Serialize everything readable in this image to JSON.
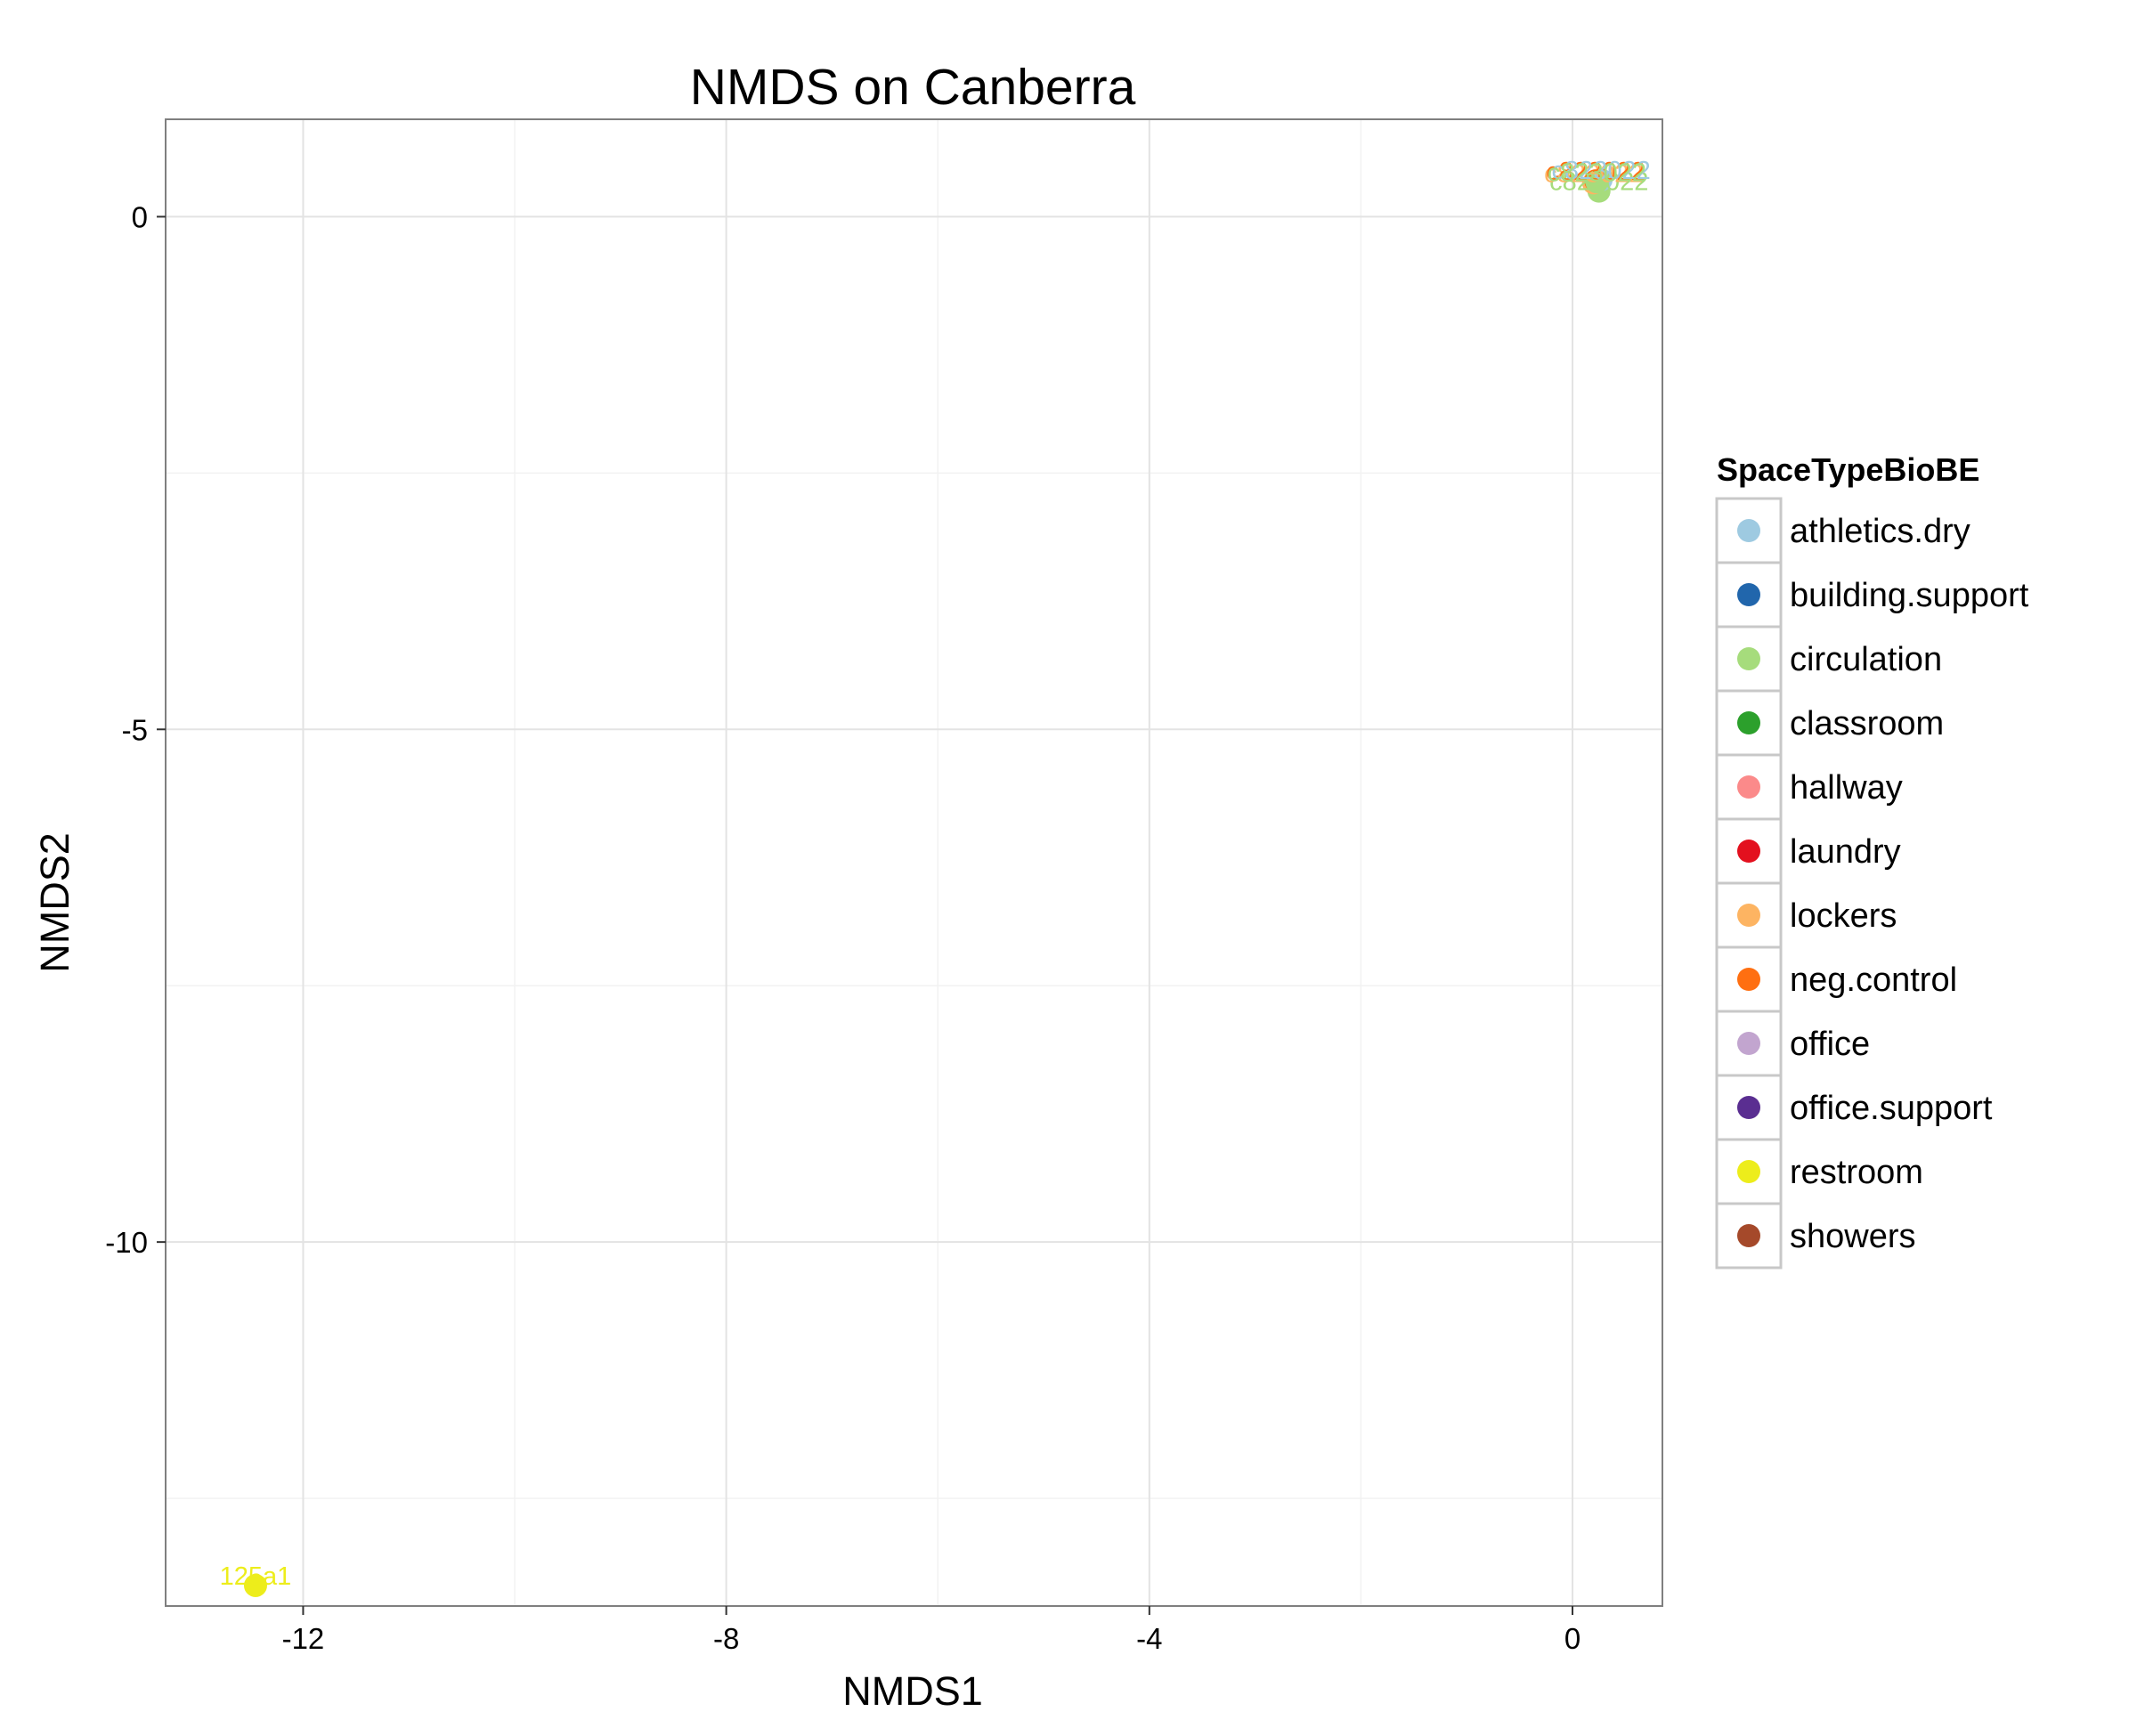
{
  "chart_data": {
    "type": "scatter",
    "title": "NMDS on Canberra",
    "xlabel": "NMDS1",
    "ylabel": "NMDS2",
    "xlim": [
      -13.3,
      0.85
    ],
    "ylim": [
      -13.55,
      0.95
    ],
    "xticks": [
      -12,
      -8,
      -4,
      0
    ],
    "yticks": [
      0,
      -5,
      -10
    ],
    "xtick_labels": [
      "-12",
      "-8",
      "-4",
      "0"
    ],
    "ytick_labels": [
      "0",
      "-5",
      "-10"
    ],
    "grid": true,
    "legend_position": "right",
    "legend_title": "SpaceTypeBioBE",
    "legend": [
      {
        "name": "athletics.dry",
        "color": "#9ecae1"
      },
      {
        "name": "building.support",
        "color": "#2166ac"
      },
      {
        "name": "circulation",
        "color": "#a6dc7c"
      },
      {
        "name": "classroom",
        "color": "#2ca02c"
      },
      {
        "name": "hallway",
        "color": "#fb8a8a"
      },
      {
        "name": "laundry",
        "color": "#e3101e"
      },
      {
        "name": "lockers",
        "color": "#fdb462"
      },
      {
        "name": "neg.control",
        "color": "#ff6f11"
      },
      {
        "name": "office",
        "color": "#c2a5cf"
      },
      {
        "name": "office.support",
        "color": "#5a2e91"
      },
      {
        "name": "restroom",
        "color": "#eded1b"
      },
      {
        "name": "showers",
        "color": "#a5492a"
      }
    ],
    "points": [
      {
        "x": -12.45,
        "y": -13.35,
        "group": "restroom",
        "label": "125a1"
      },
      {
        "x": 0.25,
        "y": 0.25,
        "group": "circulation",
        "label": "c823022"
      },
      {
        "x": 0.2,
        "y": 0.33,
        "group": "lockers",
        "label": "c823022"
      },
      {
        "x": 0.22,
        "y": 0.35,
        "group": "neg.control",
        "label": "c823022"
      },
      {
        "x": 0.27,
        "y": 0.36,
        "group": "athletics.dry",
        "label": "c823022"
      },
      {
        "x": 0.23,
        "y": 0.34,
        "group": "circulation",
        "label": "c823022"
      }
    ]
  }
}
